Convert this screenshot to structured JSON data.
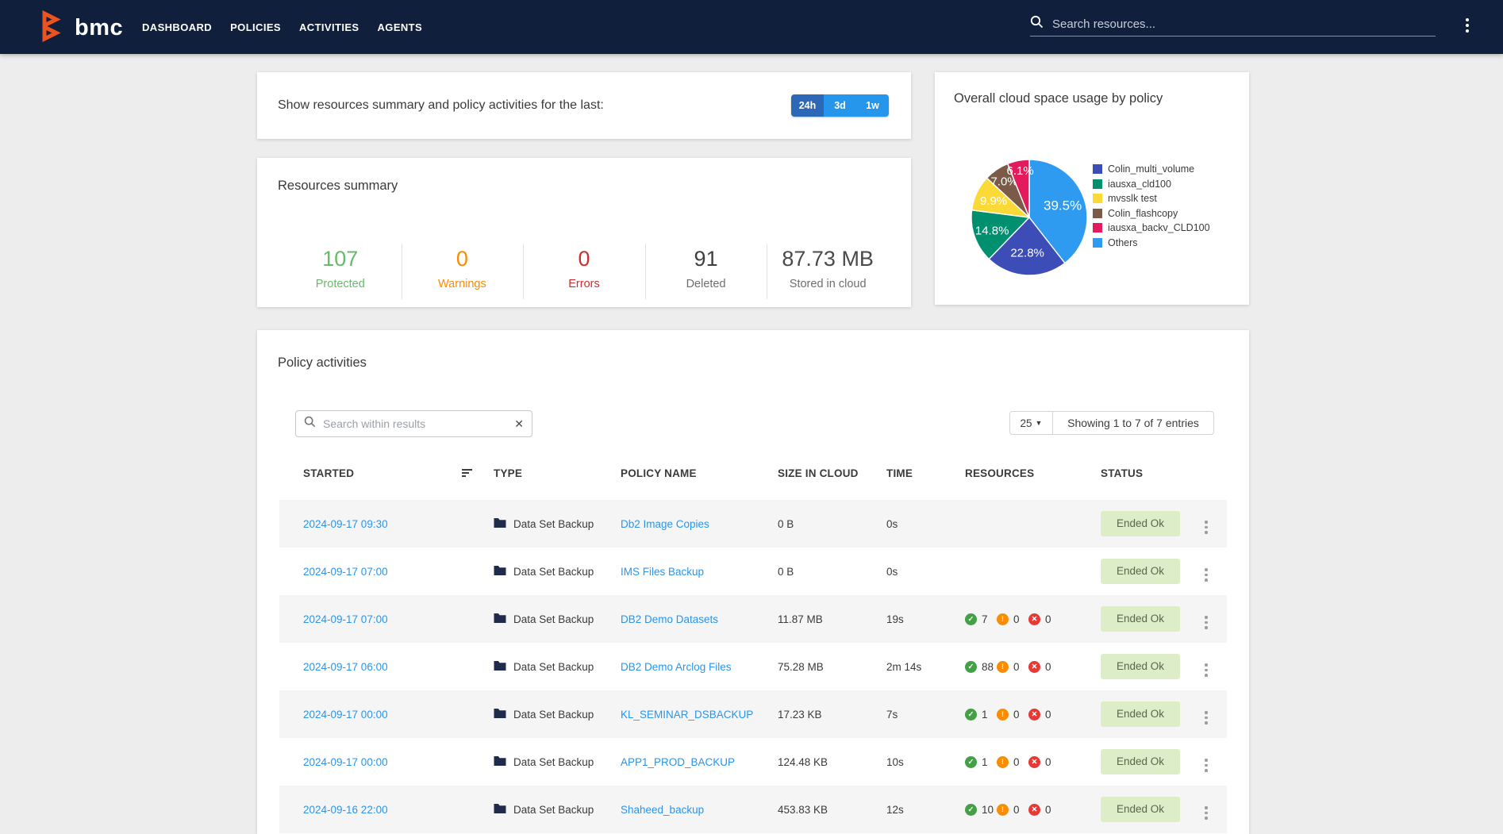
{
  "navbar": {
    "brand": "bmc",
    "items": [
      {
        "label": "DASHBOARD",
        "active": true
      },
      {
        "label": "POLICIES",
        "active": false
      },
      {
        "label": "ACTIVITIES",
        "active": false
      },
      {
        "label": "AGENTS",
        "active": false
      }
    ],
    "search_placeholder": "Search resources..."
  },
  "filter_card": {
    "label": "Show resources summary and policy activities for the last:",
    "options": [
      {
        "label": "24h",
        "active": true
      },
      {
        "label": "3d",
        "active": false
      },
      {
        "label": "1w",
        "active": false
      }
    ],
    "active_color": "#2D68B8",
    "inactive_color": "#2596EC"
  },
  "pie_card": {
    "title": "Overall cloud space usage by policy"
  },
  "chart_data": {
    "type": "pie",
    "title": "Overall cloud space usage by policy",
    "legend_position": "right",
    "slices": [
      {
        "label": "Colin_multi_volume",
        "value": 22.8,
        "display": "22.8%",
        "color": "#3D4DB7"
      },
      {
        "label": "iausxa_cld100",
        "value": 14.8,
        "display": "14.8%",
        "color": "#00906F"
      },
      {
        "label": "mvsslk test",
        "value": 9.9,
        "display": "9.9%",
        "color": "#FBD936"
      },
      {
        "label": "Colin_flashcopy",
        "value": 7.0,
        "display": "7.0%",
        "color": "#7B5A47"
      },
      {
        "label": "iausxa_backv_CLD100",
        "value": 6.1,
        "display": "6.1%",
        "color": "#E31B5C"
      },
      {
        "label": "Others",
        "value": 39.5,
        "display": "39.5%",
        "color": "#2E9BF0"
      }
    ],
    "draw_order_clockwise_from_top": [
      5,
      0,
      1,
      2,
      3,
      4
    ]
  },
  "summary_card": {
    "title": "Resources summary",
    "stats": [
      {
        "value": "107",
        "label": "Protected",
        "color": "#66BB6A",
        "label_color": "#66BB6A"
      },
      {
        "value": "0",
        "label": "Warnings",
        "color": "#FB8C00",
        "label_color": "#FB8C00"
      },
      {
        "value": "0",
        "label": "Errors",
        "color": "#CC2F2F",
        "label_color": "#CC2F2F"
      },
      {
        "value": "91",
        "label": "Deleted",
        "color": "#3F3F3F",
        "label_color": "#6E6E6E"
      },
      {
        "value": "87.73 MB",
        "label": "Stored in cloud",
        "color": "#4A4A4A",
        "label_color": "#6E6E6E"
      }
    ]
  },
  "activities": {
    "title": "Policy activities",
    "search_placeholder": "Search within results",
    "page_size": "25",
    "showing_text": "Showing 1 to 7 of 7 entries",
    "columns": [
      "STARTED",
      "TYPE",
      "POLICY NAME",
      "SIZE IN CLOUD",
      "TIME",
      "RESOURCES",
      "STATUS"
    ],
    "rows": [
      {
        "started": "2024-09-17 09:30",
        "type": "Data Set Backup",
        "policy": "Db2 Image Copies",
        "size": "0 B",
        "time": "0s",
        "ok": null,
        "warn": null,
        "err": null,
        "status": "Ended Ok"
      },
      {
        "started": "2024-09-17 07:00",
        "type": "Data Set Backup",
        "policy": "IMS Files Backup",
        "size": "0 B",
        "time": "0s",
        "ok": null,
        "warn": null,
        "err": null,
        "status": "Ended Ok"
      },
      {
        "started": "2024-09-17 07:00",
        "type": "Data Set Backup",
        "policy": "DB2 Demo Datasets",
        "size": "11.87 MB",
        "time": "19s",
        "ok": "7",
        "warn": "0",
        "err": "0",
        "status": "Ended Ok"
      },
      {
        "started": "2024-09-17 06:00",
        "type": "Data Set Backup",
        "policy": "DB2 Demo Arclog Files",
        "size": "75.28 MB",
        "time": "2m 14s",
        "ok": "88",
        "warn": "0",
        "err": "0",
        "status": "Ended Ok"
      },
      {
        "started": "2024-09-17 00:00",
        "type": "Data Set Backup",
        "policy": "KL_SEMINAR_DSBACKUP",
        "size": "17.23 KB",
        "time": "7s",
        "ok": "1",
        "warn": "0",
        "err": "0",
        "status": "Ended Ok"
      },
      {
        "started": "2024-09-17 00:00",
        "type": "Data Set Backup",
        "policy": "APP1_PROD_BACKUP",
        "size": "124.48 KB",
        "time": "10s",
        "ok": "1",
        "warn": "0",
        "err": "0",
        "status": "Ended Ok"
      },
      {
        "started": "2024-09-16 22:00",
        "type": "Data Set Backup",
        "policy": "Shaheed_backup",
        "size": "453.83 KB",
        "time": "12s",
        "ok": "10",
        "warn": "0",
        "err": "0",
        "status": "Ended Ok"
      }
    ],
    "status_style": {
      "bg": "#DCEDC8",
      "text": "#5A6650"
    },
    "resource_icon_colors": {
      "ok": "#43A047",
      "warn": "#FB8C00",
      "err": "#E53935"
    }
  },
  "colors": {
    "navbar_bg": "#101F3C",
    "page_bg": "#EDEDEE",
    "link": "#2B94EC",
    "brand_orange": "#EB5320"
  }
}
